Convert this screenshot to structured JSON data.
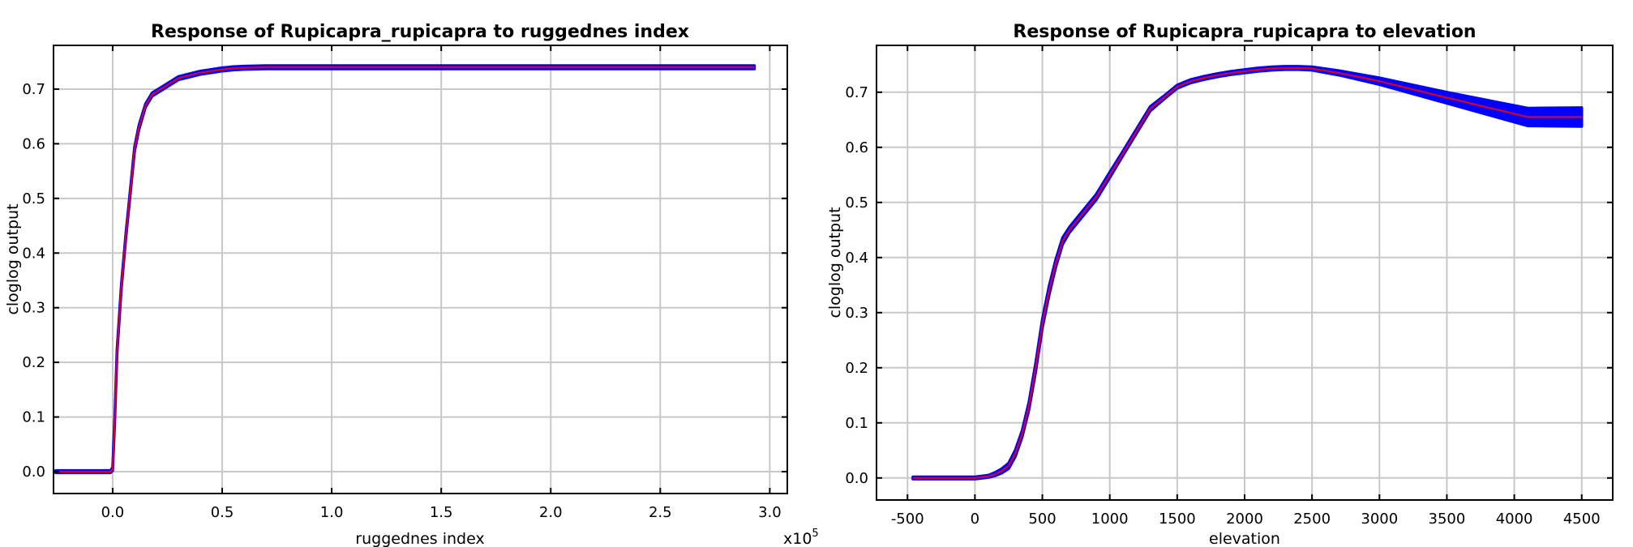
{
  "chart_data": [
    {
      "type": "line",
      "title": "Response of Rupicapra_rupicapra to ruggednes index",
      "xlabel": "ruggednes index",
      "ylabel": "cloglog output",
      "x_multiplier_label": "x10",
      "x_multiplier_exponent": "5",
      "xlim": [
        -0.27,
        3.08
      ],
      "ylim": [
        -0.04,
        0.78
      ],
      "xticks": [
        0.0,
        0.5,
        1.0,
        1.5,
        2.0,
        2.5,
        3.0
      ],
      "xtick_labels": [
        "0.0",
        "0.5",
        "1.0",
        "1.5",
        "2.0",
        "2.5",
        "3.0"
      ],
      "yticks": [
        0.0,
        0.1,
        0.2,
        0.3,
        0.4,
        0.5,
        0.6,
        0.7
      ],
      "ytick_labels": [
        "0.0",
        "0.1",
        "0.2",
        "0.3",
        "0.4",
        "0.5",
        "0.6",
        "0.7"
      ],
      "grid": true,
      "colors": {
        "mean": "#ff0000",
        "band": "#0000ff"
      },
      "series": [
        {
          "x": [
            -0.26,
            -0.05,
            -0.01,
            0.0,
            0.01,
            0.02,
            0.04,
            0.06,
            0.08,
            0.1,
            0.12,
            0.15,
            0.18,
            0.22,
            0.26,
            0.3,
            0.35,
            0.4,
            0.45,
            0.5,
            0.55,
            0.6,
            0.7,
            1.0,
            1.5,
            2.0,
            2.5,
            2.93
          ],
          "y": [
            0.0,
            0.0,
            0.0,
            0.005,
            0.1,
            0.22,
            0.34,
            0.43,
            0.51,
            0.59,
            0.63,
            0.67,
            0.69,
            0.7,
            0.71,
            0.72,
            0.725,
            0.73,
            0.733,
            0.736,
            0.738,
            0.739,
            0.74,
            0.74,
            0.74,
            0.74,
            0.74,
            0.74
          ],
          "band_halfwidth": [
            0.002,
            0.002,
            0.002,
            0.003,
            0.004,
            0.004,
            0.004,
            0.004,
            0.004,
            0.004,
            0.004,
            0.003,
            0.003,
            0.003,
            0.003,
            0.003,
            0.003,
            0.003,
            0.003,
            0.003,
            0.003,
            0.003,
            0.003,
            0.003,
            0.003,
            0.003,
            0.003,
            0.003
          ]
        }
      ]
    },
    {
      "type": "line",
      "title": "Response of Rupicapra_rupicapra to elevation",
      "xlabel": "elevation",
      "ylabel": "cloglog output",
      "xlim": [
        -730,
        4730
      ],
      "ylim": [
        -0.04,
        0.785
      ],
      "xticks": [
        -500,
        0,
        500,
        1000,
        1500,
        2000,
        2500,
        3000,
        3500,
        4000,
        4500
      ],
      "xtick_labels": [
        "-500",
        "0",
        "500",
        "1000",
        "1500",
        "2000",
        "2500",
        "3000",
        "3500",
        "4000",
        "4500"
      ],
      "yticks": [
        0.0,
        0.1,
        0.2,
        0.3,
        0.4,
        0.5,
        0.6,
        0.7
      ],
      "ytick_labels": [
        "0.0",
        "0.1",
        "0.2",
        "0.3",
        "0.4",
        "0.5",
        "0.6",
        "0.7"
      ],
      "grid": true,
      "colors": {
        "mean": "#ff0000",
        "band": "#0000ff"
      },
      "series": [
        {
          "x": [
            -460,
            0,
            100,
            150,
            200,
            250,
            300,
            350,
            400,
            450,
            500,
            550,
            600,
            650,
            700,
            800,
            900,
            1000,
            1100,
            1200,
            1300,
            1400,
            1500,
            1600,
            1700,
            1800,
            1900,
            2000,
            2100,
            2200,
            2300,
            2400,
            2500,
            2700,
            3000,
            3500,
            4100,
            4500
          ],
          "y": [
            0.0,
            0.0,
            0.003,
            0.007,
            0.013,
            0.022,
            0.045,
            0.08,
            0.13,
            0.2,
            0.28,
            0.34,
            0.39,
            0.43,
            0.45,
            0.48,
            0.51,
            0.55,
            0.59,
            0.63,
            0.67,
            0.69,
            0.71,
            0.72,
            0.726,
            0.731,
            0.735,
            0.738,
            0.741,
            0.743,
            0.744,
            0.744,
            0.743,
            0.735,
            0.72,
            0.69,
            0.655,
            0.655
          ],
          "band_halfwidth": [
            0.002,
            0.002,
            0.002,
            0.003,
            0.004,
            0.005,
            0.006,
            0.006,
            0.007,
            0.008,
            0.008,
            0.008,
            0.007,
            0.006,
            0.005,
            0.005,
            0.005,
            0.005,
            0.004,
            0.004,
            0.004,
            0.003,
            0.003,
            0.003,
            0.003,
            0.003,
            0.003,
            0.003,
            0.003,
            0.003,
            0.003,
            0.003,
            0.003,
            0.004,
            0.006,
            0.01,
            0.016,
            0.017
          ]
        }
      ]
    }
  ]
}
